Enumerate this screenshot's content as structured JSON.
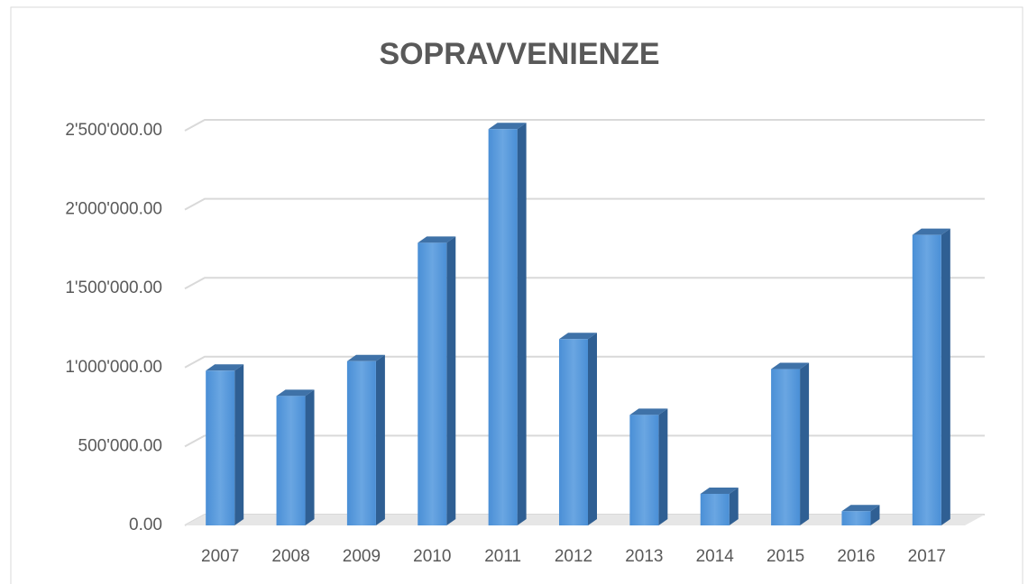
{
  "chart_data": {
    "type": "bar3d",
    "title": "SOPRAVVENIENZE",
    "categories": [
      "2007",
      "2008",
      "2009",
      "2010",
      "2011",
      "2012",
      "2013",
      "2014",
      "2015",
      "2016",
      "2017"
    ],
    "values": [
      980000,
      820000,
      1040000,
      1790000,
      2510000,
      1180000,
      700000,
      200000,
      990000,
      90000,
      1840000
    ],
    "color": "#5b9bd5",
    "ylim": [
      0,
      2500000
    ],
    "yticks": [
      {
        "value": 0,
        "label": "0.00"
      },
      {
        "value": 500000,
        "label": "500'000.00"
      },
      {
        "value": 1000000,
        "label": "1'000'000.00"
      },
      {
        "value": 1500000,
        "label": "1'500'000.00"
      },
      {
        "value": 2000000,
        "label": "2'000'000.00"
      },
      {
        "value": 2500000,
        "label": "2'500'000.00"
      }
    ],
    "grid": true
  }
}
